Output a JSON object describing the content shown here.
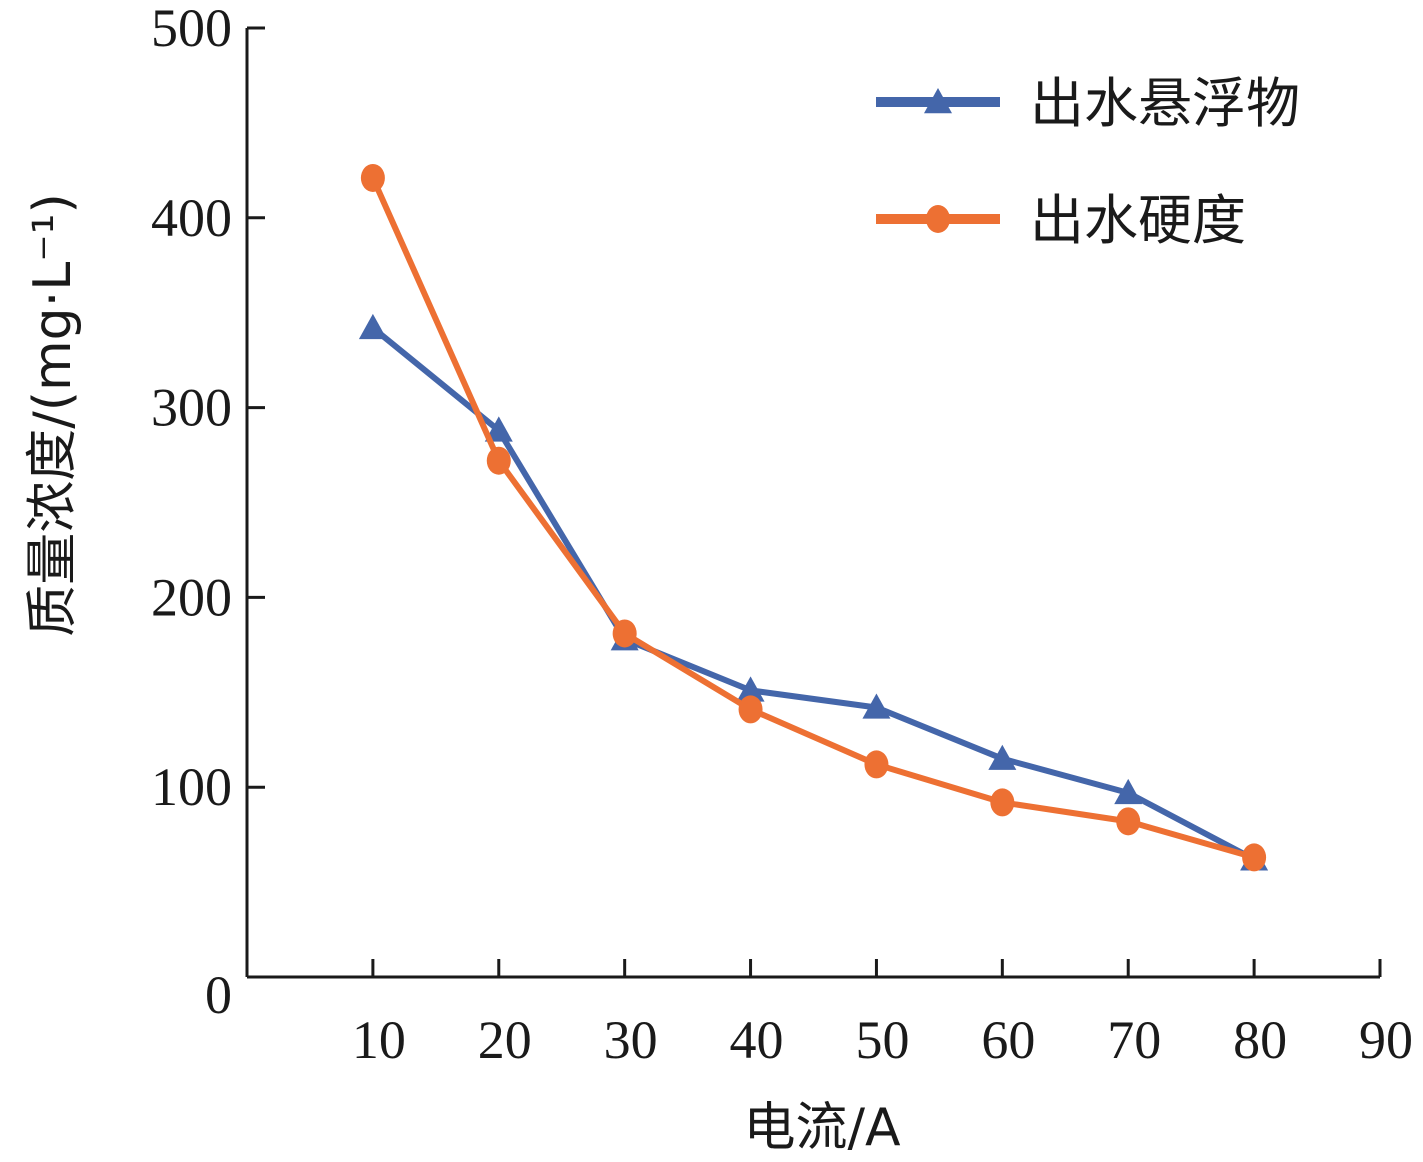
{
  "chart_data": {
    "type": "line",
    "title": "",
    "xlabel": "电流/A",
    "ylabel": "质量浓度/(mg·L⁻¹)",
    "xlim": [
      0,
      90
    ],
    "ylim": [
      0,
      500
    ],
    "x_ticks": [
      "10",
      "20",
      "30",
      "40",
      "50",
      "60",
      "70",
      "80",
      "90"
    ],
    "y_ticks": [
      "0",
      "100",
      "200",
      "300",
      "400",
      "500"
    ],
    "x": [
      10,
      20,
      30,
      40,
      50,
      60,
      70,
      80
    ],
    "series": [
      {
        "name": "出水悬浮物",
        "marker": "triangle",
        "color": "#4466aa",
        "values": [
          342,
          288,
          178,
          151,
          142,
          115,
          97,
          62
        ]
      },
      {
        "name": "出水硬度",
        "marker": "circle",
        "color": "#ed7033",
        "values": [
          421,
          272,
          181,
          141,
          112,
          92,
          82,
          63
        ]
      }
    ],
    "legend_position": "top-right",
    "grid": false
  }
}
